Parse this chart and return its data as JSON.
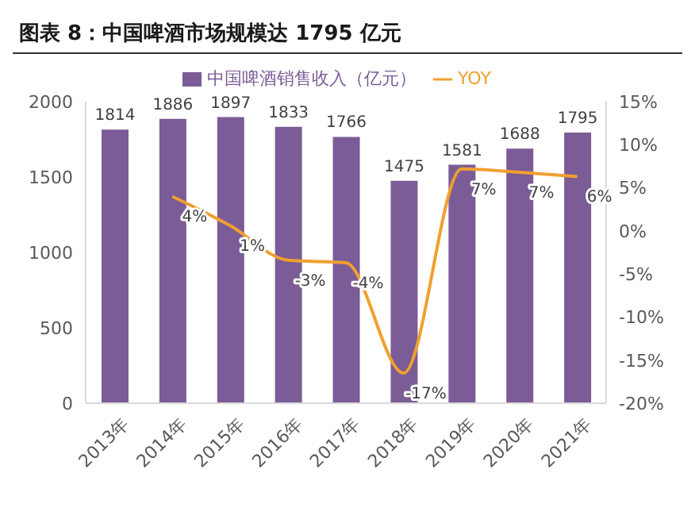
{
  "chart_data": {
    "type": "bar",
    "title": "图表 8：中国啤酒市场规模达 1795 亿元",
    "categories": [
      "2013年",
      "2014年",
      "2015年",
      "2016年",
      "2017年",
      "2018年",
      "2019年",
      "2020年",
      "2021年"
    ],
    "series": [
      {
        "name": "中国啤酒销售收入（亿元）",
        "color": "#7b5c96",
        "values": [
          1814,
          1886,
          1897,
          1833,
          1766,
          1475,
          1581,
          1688,
          1795
        ]
      },
      {
        "name": "YOY",
        "type": "line",
        "axis": "y2",
        "color": "#f0a030",
        "values": [
          null,
          4,
          0.6,
          -3.4,
          -3.7,
          -16.5,
          7.2,
          6.8,
          6.3
        ],
        "value_labels": [
          null,
          "4%",
          "1%",
          "-3%",
          "-4%",
          "-17%",
          "7%",
          "7%",
          "6%"
        ]
      }
    ],
    "data_labels": true,
    "ylim": [
      0,
      2000
    ],
    "yticks": [
      0,
      500,
      1000,
      1500,
      2000
    ],
    "y2lim": [
      -20,
      15
    ],
    "y2ticks": [
      {
        "value": -20,
        "label": "-20%"
      },
      {
        "value": -15,
        "label": "-15%"
      },
      {
        "value": -10,
        "label": "-10%"
      },
      {
        "value": -5,
        "label": "-5%"
      },
      {
        "value": 0,
        "label": "0%"
      },
      {
        "value": 5,
        "label": "5%"
      },
      {
        "value": 10,
        "label": "10%"
      },
      {
        "value": 15,
        "label": "15%"
      }
    ],
    "legend": "top",
    "grid": false,
    "marker": "none",
    "line_style": "solid"
  }
}
